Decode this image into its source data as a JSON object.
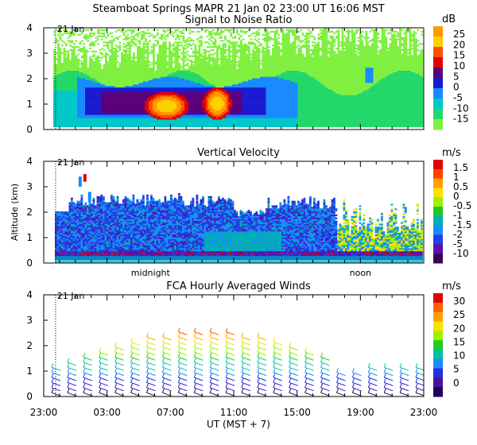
{
  "header": {
    "title": "Steamboat Springs  MAPR 21 Jan 02  23:00 UT  16:06   MST"
  },
  "x_axis": {
    "label": "UT  (MST + 7)",
    "ticks": [
      "23:00",
      "03:00",
      "07:00",
      "11:00",
      "15:00",
      "19:00",
      "23:00"
    ],
    "tick_hours": [
      0,
      4,
      8,
      12,
      16,
      20,
      24
    ],
    "markers": [
      {
        "label": "midnight",
        "hour": 8
      },
      {
        "label": "noon",
        "hour": 20
      }
    ],
    "date_marker": {
      "label": "21 Jan",
      "hour": 1
    }
  },
  "chart_data": [
    {
      "type": "heatmap",
      "title": "Signal to Noise Ratio",
      "units": "dB",
      "ylabel": "",
      "ylim": [
        0,
        4
      ],
      "yticks": [
        "0",
        "1",
        "2",
        "3",
        "4"
      ],
      "xlim_hours": [
        0,
        24
      ],
      "colorbar": {
        "labels": [
          "25",
          "20",
          "15",
          "10",
          "5",
          "0",
          "-5",
          "-10",
          "-15"
        ],
        "colors": [
          "#ff9a00",
          "#ffd000",
          "#ff5000",
          "#e00000",
          "#5a007a",
          "#1a1ad0",
          "#1a8aff",
          "#00c8c8",
          "#22d86a",
          "#80f040"
        ]
      }
    },
    {
      "type": "heatmap",
      "title": "Vertical Velocity",
      "units": "m/s",
      "ylabel": "Altitude (km)",
      "ylim": [
        0,
        4
      ],
      "yticks": [
        "0",
        "1",
        "2",
        "3",
        "4"
      ],
      "xlim_hours": [
        0,
        24
      ],
      "colorbar": {
        "labels": [
          "1.5",
          "1",
          "0.5",
          "0",
          "-0.5",
          "-1",
          "-1.5",
          "-2",
          "-5",
          "-10"
        ],
        "colors": [
          "#e00000",
          "#ff4000",
          "#ffa000",
          "#ffe000",
          "#a0f000",
          "#20c820",
          "#00b0b0",
          "#1a8aff",
          "#2040e0",
          "#5a10b0",
          "#3a0050"
        ]
      }
    },
    {
      "type": "barbs",
      "title": "FCA Hourly Averaged Winds",
      "units": "m/s",
      "ylabel": "",
      "ylim": [
        0,
        4
      ],
      "yticks": [
        "0",
        "1",
        "2",
        "3",
        "4"
      ],
      "xlim_hours": [
        0,
        24
      ],
      "colorbar": {
        "labels": [
          "30",
          "25",
          "20",
          "15",
          "10",
          "5",
          "0"
        ],
        "colors": [
          "#e00000",
          "#ff6000",
          "#ffa000",
          "#ffe000",
          "#a0f000",
          "#20d020",
          "#00c0a0",
          "#1a8aff",
          "#2030e0",
          "#4a10a0",
          "#200060"
        ]
      }
    }
  ]
}
